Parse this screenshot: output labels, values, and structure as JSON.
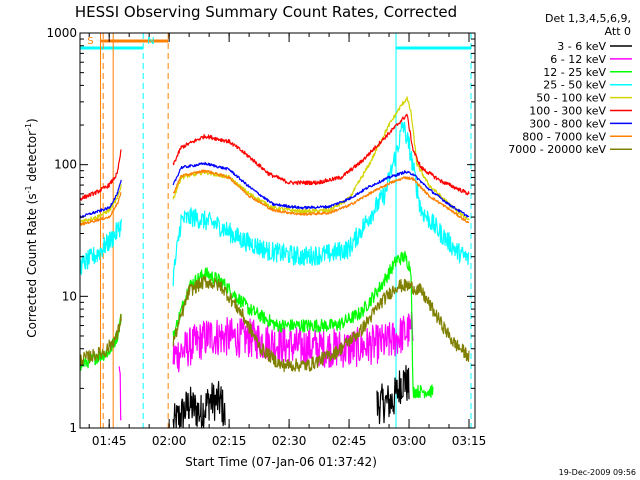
{
  "chart_data": {
    "type": "line",
    "title": "HESSI Observing Summary Count Rates, Corrected",
    "xlabel": "Start Time (07-Jan-06 01:37:42)",
    "ylabel_main": "Corrected Count Rate (s",
    "ylabel_sup": "-1",
    "ylabel_mid": " detector",
    "ylabel_end": ")",
    "xscale": "time",
    "yscale": "log",
    "xlim": [
      "01:37:42",
      "03:16:30"
    ],
    "ylim": [
      1,
      1000
    ],
    "x_ticks": [
      {
        "label": "01:45",
        "t": "01:45"
      },
      {
        "label": "02:00",
        "t": "02:00"
      },
      {
        "label": "02:15",
        "t": "02:15"
      },
      {
        "label": "02:30",
        "t": "02:30"
      },
      {
        "label": "02:45",
        "t": "02:45"
      },
      {
        "label": "03:00",
        "t": "03:00"
      },
      {
        "label": "03:15",
        "t": "03:15"
      }
    ],
    "y_ticks": [
      {
        "label": "1",
        "v": 1
      },
      {
        "label": "10",
        "v": 10
      },
      {
        "label": "100",
        "v": 100
      },
      {
        "label": "1000",
        "v": 1000
      }
    ],
    "legend_header": [
      "Det 1,3,4,5,6,9,",
      "Att 0"
    ],
    "legend_position": "right",
    "footer_date": "19-Dec-2009 09:56",
    "night_intervals": [
      {
        "start": "01:37:42",
        "end": "01:53:30"
      },
      {
        "start": "02:56:45",
        "end": "03:15:30"
      }
    ],
    "saa_intervals": [
      {
        "start": "01:42:50",
        "end": "01:59:45"
      }
    ],
    "markers": [
      {
        "label": "S",
        "t": "01:39:30",
        "color": "#ff7f00"
      },
      {
        "label": "N",
        "t": "01:54:30",
        "color": "#00ffff"
      }
    ],
    "vertical_lines": [
      {
        "t": "01:42:50",
        "color": "#ff7f00",
        "style": "solid"
      },
      {
        "t": "01:43:30",
        "color": "#ff7f00",
        "style": "dashed"
      },
      {
        "t": "01:46:00",
        "color": "#ff7f00",
        "style": "solid"
      },
      {
        "t": "01:53:30",
        "color": "#00ffff",
        "style": "dashed"
      },
      {
        "t": "01:59:45",
        "color": "#ff7f00",
        "style": "dashed"
      },
      {
        "t": "02:56:45",
        "color": "#00ffff",
        "style": "solid"
      },
      {
        "t": "03:15:30",
        "color": "#00ffff",
        "style": "dashed"
      }
    ],
    "series": [
      {
        "name": "3 - 6 keV",
        "color": "#000000",
        "noise": 0.3,
        "points": [
          [
            "01:37:42",
            null
          ],
          [
            "02:01:00",
            null
          ],
          [
            "02:01:00",
            1.05
          ],
          [
            "02:05:00",
            1.5
          ],
          [
            "02:08:00",
            1.3
          ],
          [
            "02:10:00",
            1.6
          ],
          [
            "02:13:00",
            1.6
          ],
          [
            "02:14:00",
            1.2
          ],
          [
            "02:16:00",
            null
          ],
          [
            "02:52:00",
            null
          ],
          [
            "02:52:00",
            1.5
          ],
          [
            "02:56:00",
            1.6
          ],
          [
            "02:58:00",
            2.2
          ],
          [
            "02:59:00",
            2.3
          ],
          [
            "03:00:00",
            2.0
          ],
          [
            "03:00:30",
            null
          ]
        ]
      },
      {
        "name": "6 - 12 keV",
        "color": "#ff00ff",
        "noise": 0.3,
        "points": [
          [
            "01:37:42",
            null
          ],
          [
            "01:47:30",
            null
          ],
          [
            "01:47:30",
            3.5
          ],
          [
            "01:48:00",
            1.0
          ],
          [
            "01:48:10",
            null
          ],
          [
            "02:01:00",
            null
          ],
          [
            "02:01:00",
            3.5
          ],
          [
            "02:10:00",
            5.0
          ],
          [
            "02:20:00",
            4.8
          ],
          [
            "02:30:00",
            4.2
          ],
          [
            "02:45:00",
            4.0
          ],
          [
            "02:55:00",
            4.5
          ],
          [
            "03:00:00",
            5.5
          ],
          [
            "03:01:00",
            5.5
          ],
          [
            "03:02:00",
            null
          ]
        ]
      },
      {
        "name": "12 - 25 keV",
        "color": "#00ff00",
        "noise": 0.1,
        "points": [
          [
            "01:37:42",
            3.0
          ],
          [
            "01:45:00",
            3.8
          ],
          [
            "01:47:00",
            5.0
          ],
          [
            "01:48:00",
            7.0
          ],
          [
            "01:48:20",
            null
          ],
          [
            "02:01:00",
            null
          ],
          [
            "02:01:00",
            5.0
          ],
          [
            "02:05:00",
            12.0
          ],
          [
            "02:09:00",
            15.0
          ],
          [
            "02:13:00",
            13.0
          ],
          [
            "02:20:00",
            8.0
          ],
          [
            "02:27:00",
            6.0
          ],
          [
            "02:35:00",
            6.0
          ],
          [
            "02:42:00",
            6.0
          ],
          [
            "02:48:00",
            7.5
          ],
          [
            "02:53:00",
            12.0
          ],
          [
            "02:57:00",
            19.0
          ],
          [
            "02:59:00",
            20.0
          ],
          [
            "03:00:30",
            16.0
          ],
          [
            "03:01:00",
            1.9
          ],
          [
            "03:06:00",
            1.9
          ],
          [
            "03:07:00",
            null
          ]
        ]
      },
      {
        "name": "25 - 50 keV",
        "color": "#00ffff",
        "noise": 0.15,
        "points": [
          [
            "01:37:42",
            17.0
          ],
          [
            "01:42:00",
            21.0
          ],
          [
            "01:46:00",
            28.0
          ],
          [
            "01:48:00",
            35.0
          ],
          [
            "01:48:20",
            null
          ],
          [
            "02:01:00",
            null
          ],
          [
            "02:01:00",
            14.0
          ],
          [
            "02:03:00",
            38.0
          ],
          [
            "02:06:00",
            40.0
          ],
          [
            "02:12:00",
            35.0
          ],
          [
            "02:18:00",
            27.0
          ],
          [
            "02:25:00",
            22.0
          ],
          [
            "02:33:00",
            20.0
          ],
          [
            "02:40:00",
            21.0
          ],
          [
            "02:45:00",
            23.0
          ],
          [
            "02:50:00",
            40.0
          ],
          [
            "02:54:00",
            60.0
          ],
          [
            "02:57:00",
            130.0
          ],
          [
            "02:58:30",
            200.0
          ],
          [
            "03:00:00",
            140.0
          ],
          [
            "03:03:00",
            45.0
          ],
          [
            "03:08:00",
            30.0
          ],
          [
            "03:12:00",
            22.0
          ],
          [
            "03:15:00",
            19.0
          ]
        ]
      },
      {
        "name": "50 - 100 keV",
        "color": "#d4d400",
        "noise": 0.03,
        "points": [
          [
            "01:37:42",
            37.0
          ],
          [
            "01:42:00",
            40.0
          ],
          [
            "01:45:00",
            45.0
          ],
          [
            "01:47:00",
            55.0
          ],
          [
            "01:48:00",
            70.0
          ],
          [
            "01:48:20",
            null
          ],
          [
            "02:01:00",
            null
          ],
          [
            "02:01:00",
            55.0
          ],
          [
            "02:03:00",
            80.0
          ],
          [
            "02:09:00",
            88.0
          ],
          [
            "02:15:00",
            80.0
          ],
          [
            "02:20:00",
            60.0
          ],
          [
            "02:26:00",
            47.0
          ],
          [
            "02:33:00",
            44.0
          ],
          [
            "02:40:00",
            45.0
          ],
          [
            "02:45:00",
            55.0
          ],
          [
            "02:50:00",
            100.0
          ],
          [
            "02:55:00",
            200.0
          ],
          [
            "02:58:00",
            280.0
          ],
          [
            "02:59:30",
            320.0
          ],
          [
            "03:00:30",
            250.0
          ],
          [
            "03:02:00",
            100.0
          ],
          [
            "03:05:00",
            70.0
          ],
          [
            "03:10:00",
            50.0
          ],
          [
            "03:15:00",
            38.0
          ]
        ]
      },
      {
        "name": "100 - 300 keV",
        "color": "#ff0000",
        "noise": 0.03,
        "points": [
          [
            "01:37:42",
            55.0
          ],
          [
            "01:42:00",
            62.0
          ],
          [
            "01:45:00",
            70.0
          ],
          [
            "01:47:00",
            85.0
          ],
          [
            "01:48:00",
            130.0
          ],
          [
            "01:48:20",
            null
          ],
          [
            "02:01:00",
            null
          ],
          [
            "02:01:00",
            100.0
          ],
          [
            "02:03:00",
            135.0
          ],
          [
            "02:09:00",
            165.0
          ],
          [
            "02:15:00",
            150.0
          ],
          [
            "02:20:00",
            115.0
          ],
          [
            "02:25:00",
            85.0
          ],
          [
            "02:30:00",
            73.0
          ],
          [
            "02:37:00",
            73.0
          ],
          [
            "02:43:00",
            80.0
          ],
          [
            "02:48:00",
            105.0
          ],
          [
            "02:53:00",
            150.0
          ],
          [
            "02:57:00",
            200.0
          ],
          [
            "02:59:30",
            240.0
          ],
          [
            "03:01:00",
            130.0
          ],
          [
            "03:03:00",
            95.0
          ],
          [
            "03:08:00",
            75.0
          ],
          [
            "03:15:00",
            60.0
          ]
        ]
      },
      {
        "name": "300 - 800 keV",
        "color": "#0000ff",
        "noise": 0.02,
        "points": [
          [
            "01:37:42",
            40.0
          ],
          [
            "01:42:00",
            44.0
          ],
          [
            "01:45:00",
            47.0
          ],
          [
            "01:47:00",
            60.0
          ],
          [
            "01:48:00",
            75.0
          ],
          [
            "01:48:20",
            null
          ],
          [
            "02:01:00",
            null
          ],
          [
            "02:01:00",
            70.0
          ],
          [
            "02:03:00",
            95.0
          ],
          [
            "02:09:00",
            102.0
          ],
          [
            "02:15:00",
            92.0
          ],
          [
            "02:20:00",
            68.0
          ],
          [
            "02:26:00",
            50.0
          ],
          [
            "02:33:00",
            47.0
          ],
          [
            "02:40:00",
            48.0
          ],
          [
            "02:45:00",
            55.0
          ],
          [
            "02:50:00",
            68.0
          ],
          [
            "02:55:00",
            80.0
          ],
          [
            "02:59:00",
            88.0
          ],
          [
            "03:01:00",
            85.0
          ],
          [
            "03:05:00",
            65.0
          ],
          [
            "03:10:00",
            50.0
          ],
          [
            "03:15:00",
            40.0
          ]
        ]
      },
      {
        "name": "800 - 7000 keV",
        "color": "#ff7f00",
        "noise": 0.02,
        "points": [
          [
            "01:37:42",
            35.0
          ],
          [
            "01:42:00",
            38.0
          ],
          [
            "01:45:00",
            40.0
          ],
          [
            "01:47:00",
            50.0
          ],
          [
            "01:48:00",
            62.0
          ],
          [
            "01:48:20",
            null
          ],
          [
            "02:01:00",
            null
          ],
          [
            "02:01:00",
            60.0
          ],
          [
            "02:03:00",
            82.0
          ],
          [
            "02:09:00",
            90.0
          ],
          [
            "02:15:00",
            80.0
          ],
          [
            "02:20:00",
            58.0
          ],
          [
            "02:26:00",
            45.0
          ],
          [
            "02:33:00",
            42.0
          ],
          [
            "02:40:00",
            43.0
          ],
          [
            "02:45:00",
            49.0
          ],
          [
            "02:50:00",
            60.0
          ],
          [
            "02:55:00",
            72.0
          ],
          [
            "02:59:00",
            80.0
          ],
          [
            "03:01:00",
            78.0
          ],
          [
            "03:05:00",
            58.0
          ],
          [
            "03:10:00",
            46.0
          ],
          [
            "03:15:00",
            36.0
          ]
        ]
      },
      {
        "name": "7000 - 20000 keV",
        "color": "#808000",
        "noise": 0.1,
        "points": [
          [
            "01:37:42",
            3.3
          ],
          [
            "01:44:00",
            3.8
          ],
          [
            "01:47:00",
            5.0
          ],
          [
            "01:48:00",
            7.0
          ],
          [
            "01:48:20",
            null
          ],
          [
            "02:01:00",
            null
          ],
          [
            "02:01:00",
            4.5
          ],
          [
            "02:05:00",
            11.0
          ],
          [
            "02:09:00",
            13.0
          ],
          [
            "02:13:00",
            12.0
          ],
          [
            "02:18:00",
            7.5
          ],
          [
            "02:23:00",
            4.0
          ],
          [
            "02:28:00",
            3.0
          ],
          [
            "02:35:00",
            3.0
          ],
          [
            "02:42:00",
            3.8
          ],
          [
            "02:48:00",
            5.5
          ],
          [
            "02:53:00",
            9.0
          ],
          [
            "02:57:00",
            12.0
          ],
          [
            "03:00:00",
            12.0
          ],
          [
            "03:03:00",
            11.0
          ],
          [
            "03:07:00",
            7.0
          ],
          [
            "03:11:00",
            4.5
          ],
          [
            "03:15:00",
            3.5
          ]
        ]
      }
    ]
  }
}
